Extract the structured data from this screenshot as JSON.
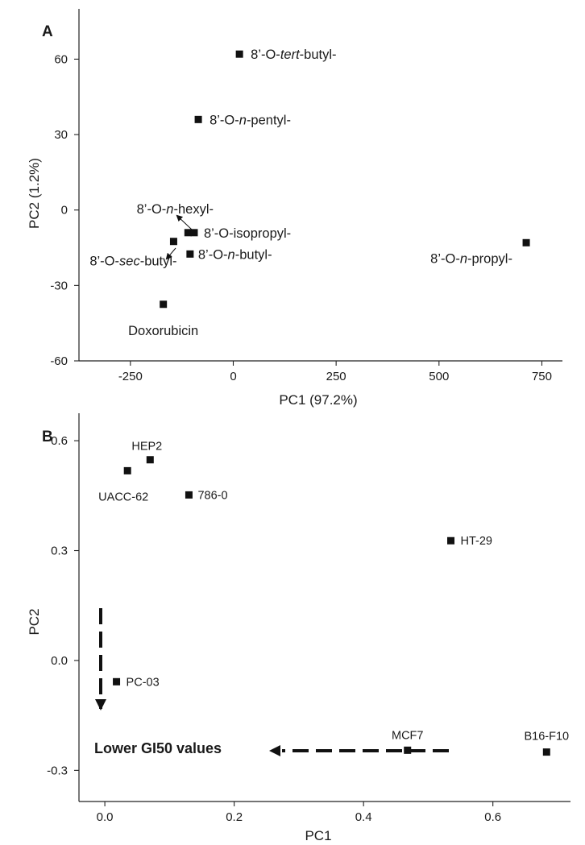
{
  "chart_data": [
    {
      "panel": "A",
      "type": "scatter",
      "title": "",
      "xlabel": "PC1 (97.2%)",
      "ylabel": "PC2 (1.2%)",
      "xlim": [
        -375,
        800
      ],
      "ylim": [
        -60,
        80
      ],
      "xticks": [
        -250,
        0,
        250,
        500,
        750
      ],
      "yticks": [
        -60,
        -30,
        0,
        30,
        60
      ],
      "grid": false,
      "points": [
        {
          "label": "8’-O-tert-butyl-",
          "x": 15,
          "y": 62
        },
        {
          "label": "8’-O-n-pentyl-",
          "x": -85,
          "y": 36
        },
        {
          "label": "8’-O-n-hexyl-",
          "x": -110,
          "y": -9
        },
        {
          "label": "8’-O-isopropyl-",
          "x": -95,
          "y": -9
        },
        {
          "label": "8’-O-sec-butyl-",
          "x": -145,
          "y": -12.5
        },
        {
          "label": "8’-O-n-butyl-",
          "x": -105,
          "y": -17.5
        },
        {
          "label": "8’-O-n-propyl-",
          "x": 712,
          "y": -13
        },
        {
          "label": "Doxorubicin",
          "x": -170,
          "y": -37.5
        }
      ],
      "label_parts": [
        [
          {
            "t": "8’-O-"
          },
          {
            "t": "tert",
            "i": true
          },
          {
            "t": "-butyl-"
          }
        ],
        [
          {
            "t": "8’-O-"
          },
          {
            "t": "n",
            "i": true
          },
          {
            "t": "-pentyl-"
          }
        ],
        [
          {
            "t": "8’-O-"
          },
          {
            "t": "n",
            "i": true
          },
          {
            "t": "-hexyl-"
          }
        ],
        [
          {
            "t": "8’-O-isopropyl-"
          }
        ],
        [
          {
            "t": "8’-O-"
          },
          {
            "t": "sec",
            "i": true
          },
          {
            "t": "-butyl-"
          }
        ],
        [
          {
            "t": "8’-O-"
          },
          {
            "t": "n",
            "i": true
          },
          {
            "t": "-butyl-"
          }
        ],
        [
          {
            "t": "8’-O-"
          },
          {
            "t": "n",
            "i": true
          },
          {
            "t": "-propyl-"
          }
        ],
        [
          {
            "t": "Doxorubicin"
          }
        ]
      ]
    },
    {
      "panel": "B",
      "type": "scatter",
      "title": "",
      "xlabel": "PC1",
      "ylabel": "PC2",
      "xlim": [
        -0.04,
        0.72
      ],
      "ylim": [
        -0.385,
        0.675
      ],
      "xticks": [
        0.0,
        0.2,
        0.4,
        0.6
      ],
      "yticks": [
        -0.3,
        0.0,
        0.3,
        0.6
      ],
      "grid": false,
      "points": [
        {
          "label": "HEP2",
          "x": 0.07,
          "y": 0.548
        },
        {
          "label": "UACC-62",
          "x": 0.035,
          "y": 0.518
        },
        {
          "label": "786-0",
          "x": 0.13,
          "y": 0.452
        },
        {
          "label": "HT-29",
          "x": 0.535,
          "y": 0.327
        },
        {
          "label": "PC-03",
          "x": 0.018,
          "y": -0.058
        },
        {
          "label": "MCF7",
          "x": 0.468,
          "y": -0.245
        },
        {
          "label": "B16-F10",
          "x": 0.683,
          "y": -0.25
        }
      ],
      "annotation": "Lower GI50 values"
    }
  ]
}
